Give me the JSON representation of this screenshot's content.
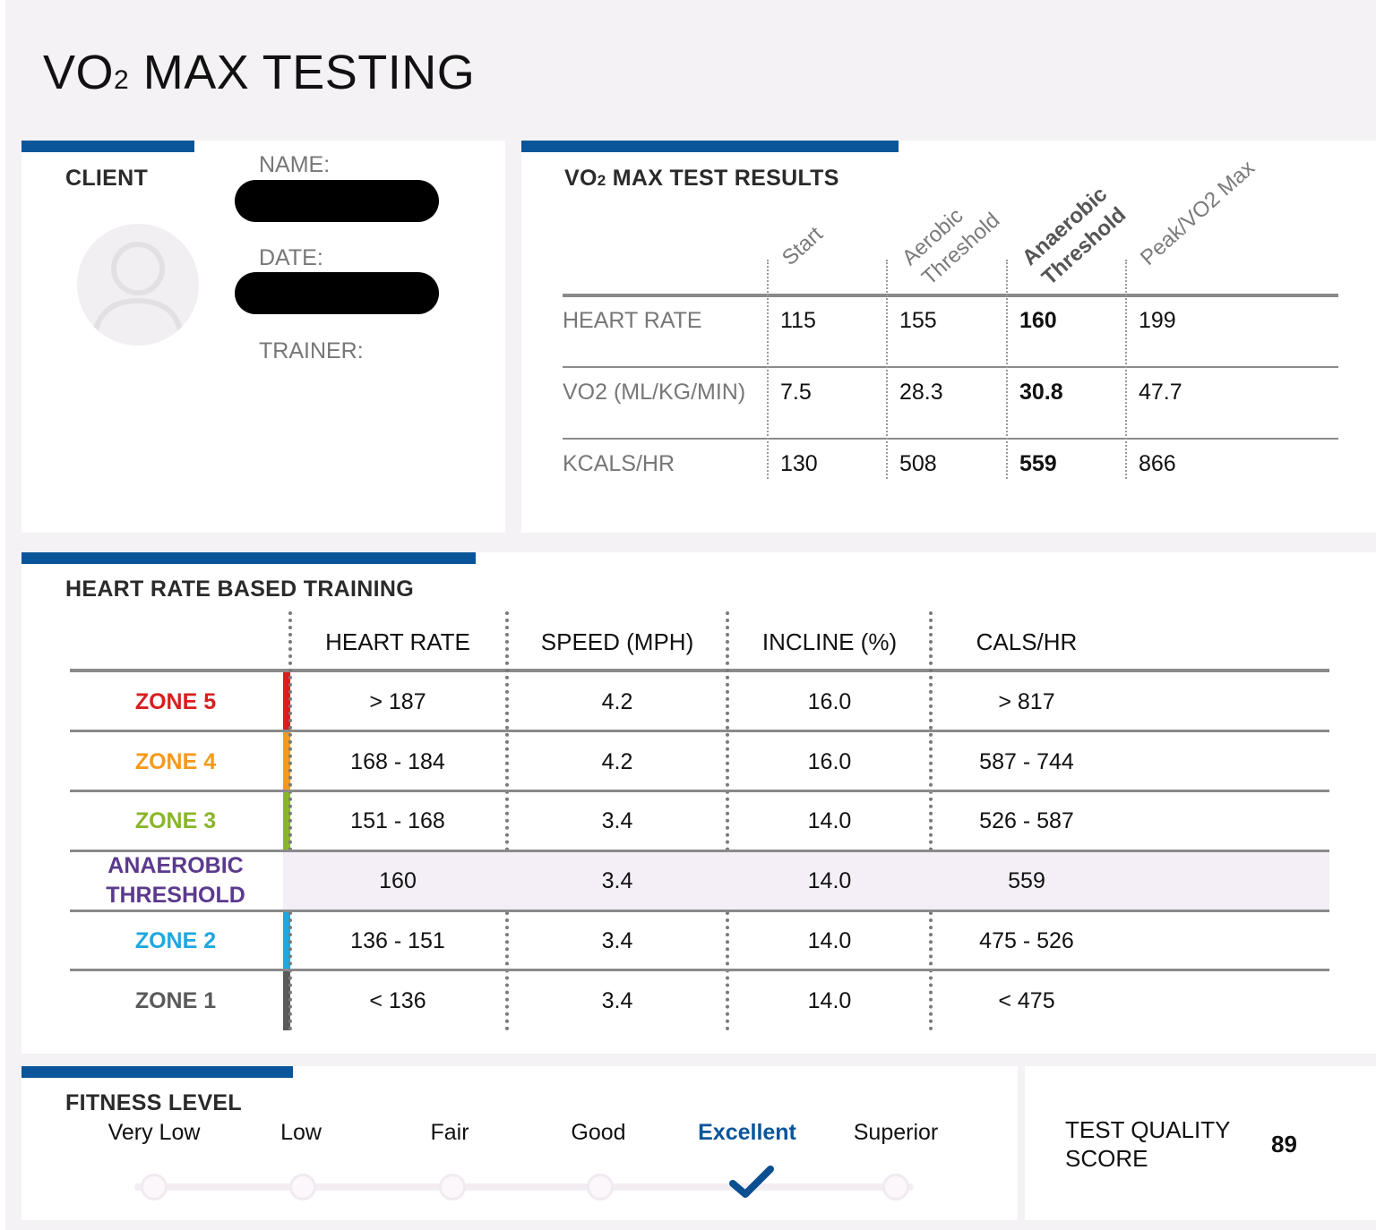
{
  "title_main": "VO",
  "title_sub": "2",
  "title_rest": " MAX TESTING",
  "client": {
    "heading": "CLIENT",
    "name_label": "NAME:",
    "date_label": "DATE:",
    "trainer_label": "TRAINER:"
  },
  "results": {
    "heading_main": "VO",
    "heading_sub": "2",
    "heading_rest": " MAX TEST RESULTS",
    "columns": [
      "Start",
      "Aerobic",
      "Threshold",
      "Anaerobic",
      "Threshold",
      "Peak/VO2 Max"
    ],
    "rows": [
      {
        "label": "HEART RATE",
        "values": [
          "115",
          "155",
          "160",
          "199"
        ]
      },
      {
        "label": "VO2 (ML/KG/MIN)",
        "values": [
          "7.5",
          "28.3",
          "30.8",
          "47.7"
        ]
      },
      {
        "label": "KCALS/HR",
        "values": [
          "130",
          "508",
          "559",
          "866"
        ]
      }
    ]
  },
  "training": {
    "heading": "HEART RATE BASED TRAINING",
    "headers": [
      "HEART RATE",
      "SPEED (MPH)",
      "INCLINE (%)",
      "CALS/HR"
    ],
    "rows": [
      {
        "zone": "ZONE 5",
        "values": [
          "> 187",
          "4.2",
          "16.0",
          "> 817"
        ]
      },
      {
        "zone": "ZONE 4",
        "values": [
          "168 - 184",
          "4.2",
          "16.0",
          "587 - 744"
        ]
      },
      {
        "zone": "ZONE 3",
        "values": [
          "151 - 168",
          "3.4",
          "14.0",
          "526 - 587"
        ]
      },
      {
        "zone": "ANAEROBIC",
        "zone2": "THRESHOLD",
        "values": [
          "160",
          "3.4",
          "14.0",
          "559"
        ]
      },
      {
        "zone": "ZONE 2",
        "values": [
          "136 - 151",
          "3.4",
          "14.0",
          "475 - 526"
        ]
      },
      {
        "zone": "ZONE 1",
        "values": [
          "< 136",
          "3.4",
          "14.0",
          "< 475"
        ]
      }
    ],
    "zone_colors": [
      "#d81e1e",
      "#f39a1c",
      "#8ab52a",
      "#5b3a8e",
      "#1fa7e0",
      "#5a5a5a"
    ]
  },
  "fitness": {
    "heading": "FITNESS LEVEL",
    "levels": [
      "Very Low",
      "Low",
      "Fair",
      "Good",
      "Excellent",
      "Superior"
    ],
    "selected": "Excellent",
    "check_icon": "checkmark-icon"
  },
  "quality": {
    "label_line1": "TEST QUALITY",
    "label_line2": "SCORE",
    "value": "89"
  },
  "colors": {
    "accent": "#0a5599"
  }
}
